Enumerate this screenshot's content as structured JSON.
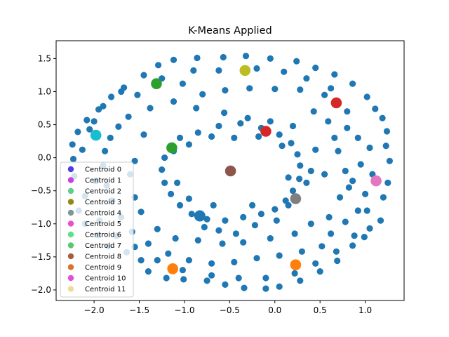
{
  "chart_data": {
    "type": "scatter",
    "title": "K-Means Applied",
    "xlabel": "",
    "ylabel": "",
    "xlim": [
      -2.42,
      1.43
    ],
    "ylim": [
      -2.16,
      1.77
    ],
    "xticks": [
      -2.0,
      -1.5,
      -1.0,
      -0.5,
      0.0,
      0.5,
      1.0
    ],
    "xtick_labels": [
      "−2.0",
      "−1.5",
      "−1.0",
      "−0.5",
      "0.0",
      "0.5",
      "1.0"
    ],
    "yticks": [
      -2.0,
      -1.5,
      -1.0,
      -0.5,
      0.0,
      0.5,
      1.0,
      1.5
    ],
    "ytick_labels": [
      "−2.0",
      "−1.5",
      "−1.0",
      "−0.5",
      "0.0",
      "0.5",
      "1.0",
      "1.5"
    ],
    "grid": false,
    "legend_position": "lower-left",
    "points_color": "#1f77b4",
    "points": [
      [
        -1.29,
        1.4
      ],
      [
        -1.12,
        1.48
      ],
      [
        -0.86,
        1.51
      ],
      [
        -0.57,
        1.52
      ],
      [
        -0.32,
        1.54
      ],
      [
        -0.05,
        1.5
      ],
      [
        0.24,
        1.46
      ],
      [
        0.45,
        1.36
      ],
      [
        0.66,
        1.26
      ],
      [
        0.86,
        1.12
      ],
      [
        -1.67,
        1.06
      ],
      [
        -1.81,
        0.92
      ],
      [
        -1.95,
        0.73
      ],
      [
        -2.08,
        0.57
      ],
      [
        -2.18,
        0.39
      ],
      [
        -2.24,
        0.2
      ],
      [
        -2.23,
        -0.02
      ],
      [
        -2.22,
        -0.28
      ],
      [
        1.02,
        0.92
      ],
      [
        1.11,
        0.74
      ],
      [
        1.19,
        0.6
      ],
      [
        1.24,
        0.4
      ],
      [
        1.23,
        0.18
      ],
      [
        1.27,
        -0.05
      ],
      [
        1.25,
        -0.38
      ],
      [
        1.2,
        -0.6
      ],
      [
        1.17,
        -0.95
      ],
      [
        -2.17,
        -0.8
      ],
      [
        -2.1,
        -1.0
      ],
      [
        -1.96,
        -1.17
      ],
      [
        -1.84,
        -1.34
      ],
      [
        -1.64,
        -1.43
      ],
      [
        -1.48,
        -1.55
      ],
      [
        -1.4,
        -1.72
      ],
      [
        -1.2,
        -1.82
      ],
      [
        -1.01,
        -1.84
      ],
      [
        -0.75,
        -1.86
      ],
      [
        -0.55,
        -1.92
      ],
      [
        -0.34,
        -1.97
      ],
      [
        -0.1,
        -1.98
      ],
      [
        0.05,
        -1.95
      ],
      [
        0.28,
        -1.86
      ],
      [
        0.5,
        -1.72
      ],
      [
        0.69,
        -1.56
      ],
      [
        0.86,
        -1.33
      ],
      [
        0.99,
        -1.2
      ],
      [
        1.05,
        -1.07
      ],
      [
        0.78,
        -0.97
      ],
      [
        -1.38,
        0.75
      ],
      [
        -1.12,
        0.85
      ],
      [
        -0.87,
        0.75
      ],
      [
        -0.56,
        0.68
      ],
      [
        -0.3,
        0.6
      ],
      [
        -0.05,
        0.55
      ],
      [
        0.2,
        0.48
      ],
      [
        0.43,
        0.7
      ],
      [
        0.59,
        0.55
      ],
      [
        0.8,
        0.45
      ],
      [
        0.92,
        0.3
      ],
      [
        0.95,
        -0.1
      ],
      [
        0.86,
        -0.35
      ],
      [
        0.72,
        -0.6
      ],
      [
        0.6,
        -0.9
      ],
      [
        -1.62,
        0.62
      ],
      [
        -1.73,
        0.47
      ],
      [
        -1.82,
        0.3
      ],
      [
        -1.88,
        0.1
      ],
      [
        -1.9,
        -0.12
      ],
      [
        -1.86,
        -0.42
      ],
      [
        -1.8,
        -0.65
      ],
      [
        -1.7,
        -0.9
      ],
      [
        -1.58,
        -1.12
      ],
      [
        -1.4,
        -1.3
      ],
      [
        -1.18,
        -1.45
      ],
      [
        -0.95,
        -1.55
      ],
      [
        -0.7,
        -1.6
      ],
      [
        -0.45,
        -1.58
      ],
      [
        -0.2,
        -1.52
      ],
      [
        0.05,
        -1.48
      ],
      [
        0.3,
        -1.42
      ],
      [
        0.52,
        -1.34
      ],
      [
        0.62,
        -1.15
      ],
      [
        -1.05,
        0.3
      ],
      [
        -0.85,
        0.38
      ],
      [
        -0.62,
        0.48
      ],
      [
        -0.38,
        0.52
      ],
      [
        -0.15,
        0.45
      ],
      [
        0.05,
        0.35
      ],
      [
        0.18,
        0.22
      ],
      [
        0.25,
        0.05
      ],
      [
        0.28,
        -0.12
      ],
      [
        0.27,
        -0.32
      ],
      [
        0.2,
        -0.5
      ],
      [
        0.12,
        -0.65
      ],
      [
        0.0,
        -0.78
      ],
      [
        -0.15,
        -0.85
      ],
      [
        -0.35,
        -0.9
      ],
      [
        -0.55,
        -0.95
      ],
      [
        -0.75,
        -0.93
      ],
      [
        -0.92,
        -0.85
      ],
      [
        -1.05,
        -0.72
      ],
      [
        -1.15,
        -0.55
      ],
      [
        -1.22,
        -0.38
      ],
      [
        -1.25,
        -0.18
      ],
      [
        -1.22,
        0.0
      ],
      [
        -1.16,
        0.15
      ],
      [
        -0.78,
        -1.05
      ],
      [
        -0.62,
        -1.1
      ],
      [
        -0.43,
        -1.15
      ],
      [
        -0.22,
        -1.02
      ],
      [
        0.02,
        -0.95
      ],
      [
        0.35,
        -0.38
      ],
      [
        0.55,
        -0.25
      ],
      [
        0.78,
        -0.2
      ],
      [
        -1.52,
        0.95
      ],
      [
        -1.45,
        0.35
      ],
      [
        -1.55,
        -0.05
      ],
      [
        -1.6,
        -0.25
      ],
      [
        -1.55,
        -0.6
      ],
      [
        -1.48,
        -0.82
      ],
      [
        -1.3,
        -1.08
      ],
      [
        -1.1,
        -1.22
      ],
      [
        -0.85,
        -1.25
      ],
      [
        -0.58,
        -1.3
      ],
      [
        -0.35,
        -1.28
      ],
      [
        -0.05,
        -1.22
      ],
      [
        0.22,
        -1.15
      ],
      [
        0.4,
        -1.0
      ],
      [
        -0.8,
        0.96
      ],
      [
        -0.55,
        1.02
      ],
      [
        -0.28,
        1.05
      ],
      [
        0.0,
        1.04
      ],
      [
        0.28,
        1.03
      ],
      [
        0.55,
        0.95
      ],
      [
        -1.02,
        1.12
      ],
      [
        -1.25,
        1.2
      ],
      [
        -1.45,
        1.25
      ],
      [
        -1.7,
        1.0
      ],
      [
        -2.05,
        0.43
      ],
      [
        -2.13,
        0.12
      ],
      [
        -2.1,
        -0.58
      ],
      [
        1.05,
        0.15
      ],
      [
        1.08,
        -0.25
      ],
      [
        1.0,
        -0.55
      ],
      [
        0.92,
        -0.8
      ],
      [
        0.82,
        -0.45
      ],
      [
        0.7,
        0.1
      ],
      [
        0.66,
        0.3
      ],
      [
        0.45,
        0.12
      ],
      [
        0.4,
        -0.2
      ],
      [
        0.15,
        -0.72
      ],
      [
        -0.25,
        -0.72
      ],
      [
        -0.68,
        -0.72
      ],
      [
        -0.95,
        -0.62
      ],
      [
        -1.08,
        -0.38
      ],
      [
        -1.12,
        0.1
      ],
      [
        -0.95,
        0.2
      ],
      [
        -0.7,
        0.32
      ],
      [
        -0.45,
        0.3
      ],
      [
        -0.18,
        0.32
      ],
      [
        0.08,
        0.18
      ],
      [
        0.15,
        -0.3
      ],
      [
        -0.9,
        1.32
      ],
      [
        -0.62,
        1.32
      ],
      [
        -0.2,
        1.35
      ],
      [
        0.1,
        1.3
      ],
      [
        0.35,
        1.2
      ],
      [
        0.62,
        1.05
      ],
      [
        0.8,
        0.7
      ],
      [
        -1.9,
        0.78
      ],
      [
        -2.0,
        0.55
      ],
      [
        -1.98,
        -0.35
      ],
      [
        -1.94,
        -0.95
      ],
      [
        -1.75,
        -1.18
      ],
      [
        -1.55,
        -1.35
      ],
      [
        -1.3,
        -1.55
      ],
      [
        -1.02,
        -1.7
      ],
      [
        -0.7,
        -1.78
      ],
      [
        -0.4,
        -1.82
      ],
      [
        -0.1,
        -1.82
      ],
      [
        0.22,
        -1.75
      ],
      [
        0.45,
        -1.6
      ],
      [
        0.68,
        -1.42
      ],
      [
        0.88,
        -1.18
      ],
      [
        1.02,
        -0.8
      ]
    ],
    "large_point": {
      "x": -0.83,
      "y": -0.88,
      "color": "#1f77b4"
    },
    "centroids": [
      {
        "name": "Centroid 0",
        "x": 0.2,
        "y": -0.6,
        "legend_color": "#4b3cf0"
      },
      {
        "name": "Centroid 1",
        "x": -1.7,
        "y": 0.3,
        "legend_color": "#c93ee8"
      },
      {
        "name": "Centroid 2",
        "x": -1.95,
        "y": -0.78,
        "legend_color": "#5ecf8c"
      },
      {
        "name": "Centroid 3",
        "x": 1.1,
        "y": 0.1,
        "legend_color": "#8f8a12"
      },
      {
        "name": "Centroid 4",
        "x": -0.2,
        "y": -1.4,
        "legend_color": "#7f9698"
      },
      {
        "name": "Centroid 5",
        "x": -0.9,
        "y": 0.7,
        "legend_color": "#e64fd2"
      },
      {
        "name": "Centroid 6",
        "x": 0.5,
        "y": 0.9,
        "legend_color": "#5fe089"
      },
      {
        "name": "Centroid 7",
        "x": -1.2,
        "y": -1.5,
        "legend_color": "#58c874"
      },
      {
        "name": "Centroid 8",
        "x": -1.5,
        "y": -1.7,
        "legend_color": "#a0623c"
      },
      {
        "name": "Centroid 9",
        "x": 0.4,
        "y": -1.8,
        "legend_color": "#d9742a"
      },
      {
        "name": "Centroid 10",
        "x": -0.4,
        "y": 1.2,
        "legend_color": "#e24ed8"
      },
      {
        "name": "Centroid 11",
        "x": -1.4,
        "y": 1.0,
        "legend_color": "#f0dc9a"
      }
    ],
    "highlighted_centroids": [
      {
        "x": 0.68,
        "y": 0.83,
        "color": "#d62728"
      },
      {
        "x": -0.1,
        "y": 0.4,
        "color": "#d62728"
      },
      {
        "x": -1.31,
        "y": 1.12,
        "color": "#2ca02c"
      },
      {
        "x": -1.14,
        "y": 0.15,
        "color": "#2ca02c"
      },
      {
        "x": -0.33,
        "y": 1.32,
        "color": "#bcbd22"
      },
      {
        "x": -1.98,
        "y": 0.34,
        "color": "#17becf"
      },
      {
        "x": 1.12,
        "y": -0.35,
        "color": "#e377c2"
      },
      {
        "x": -0.49,
        "y": -0.2,
        "color": "#8c564b"
      },
      {
        "x": 0.23,
        "y": -0.62,
        "color": "#7f7f7f"
      },
      {
        "x": -1.13,
        "y": -1.68,
        "color": "#ff7f0e"
      },
      {
        "x": 0.23,
        "y": -1.62,
        "color": "#ff7f0e"
      }
    ]
  }
}
